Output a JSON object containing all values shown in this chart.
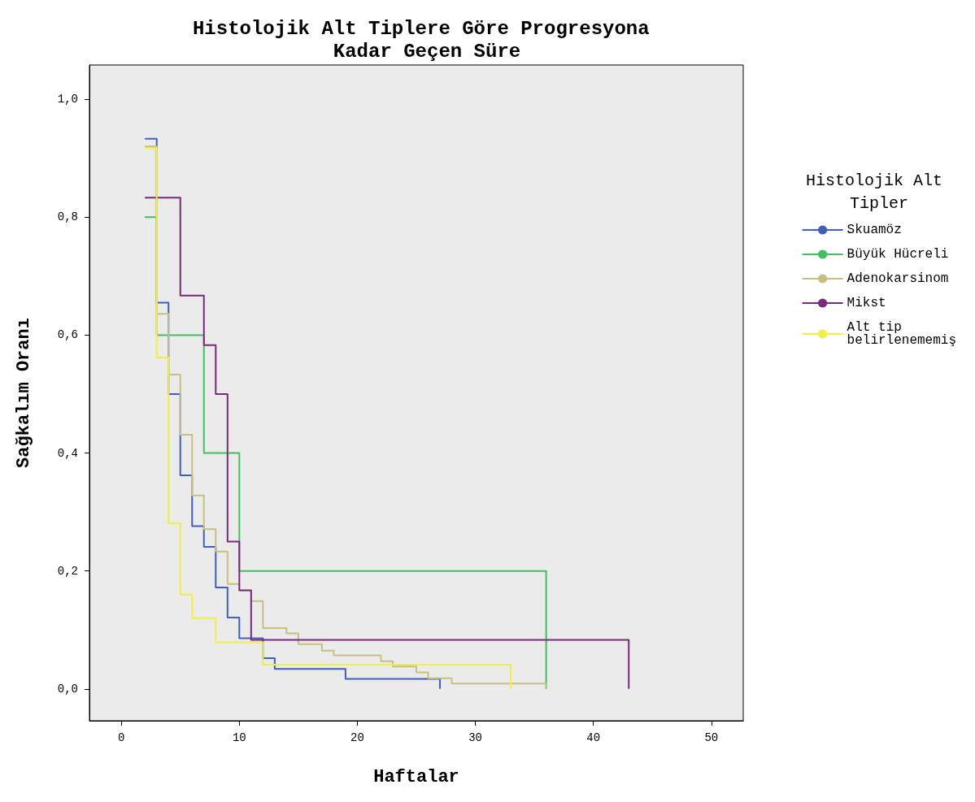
{
  "chart_data": {
    "type": "step",
    "title": "Histolojik Alt Tiplere Göre Progresyona Kadar Geçen Süre",
    "xlabel": "Haftalar",
    "ylabel": "Sağkalım Oranı",
    "legend_title": "Histolojik Alt Tipler",
    "legend": "right",
    "grid": false,
    "marker": "none",
    "line_style": "solid",
    "xlim": [
      -2.7,
      52.7
    ],
    "xticks": [
      0,
      10,
      20,
      30,
      40,
      50
    ],
    "ylim": [
      -0.054,
      1.058
    ],
    "yticks": [
      {
        "value": 0,
        "label": "0,0"
      },
      {
        "value": 0.2,
        "label": "0,2"
      },
      {
        "value": 0.4,
        "label": "0,4"
      },
      {
        "value": 0.6,
        "label": "0,6"
      },
      {
        "value": 0.8,
        "label": "0,8"
      },
      {
        "value": 1,
        "label": "1,0"
      }
    ],
    "series": [
      {
        "name": "Skuamöz",
        "color": "#4060c0",
        "x": [
          2,
          3,
          4,
          5,
          6,
          7,
          8,
          9,
          10,
          12,
          13,
          19,
          27
        ],
        "values": [
          0.933,
          0.655,
          0.5,
          0.362,
          0.276,
          0.241,
          0.172,
          0.121,
          0.086,
          0.052,
          0.034,
          0.017,
          0
        ]
      },
      {
        "name": "Büyük Hücreli",
        "color": "#40c060",
        "x": [
          2,
          3,
          7,
          10,
          36
        ],
        "values": [
          0.8,
          0.6,
          0.4,
          0.2,
          0
        ]
      },
      {
        "name": "Adenokarsinom",
        "color": "#c8c080",
        "x": [
          2,
          3,
          4,
          5,
          6,
          7,
          8,
          9,
          10,
          11,
          12,
          14,
          15,
          17,
          18,
          22,
          23,
          25,
          26,
          28,
          36
        ],
        "values": [
          0.92,
          0.636,
          0.533,
          0.431,
          0.328,
          0.271,
          0.233,
          0.178,
          0.167,
          0.149,
          0.103,
          0.094,
          0.076,
          0.065,
          0.057,
          0.047,
          0.038,
          0.028,
          0.018,
          0.009,
          0
        ]
      },
      {
        "name": "Mikst",
        "color": "#7a2a7a",
        "x": [
          2,
          5,
          7,
          8,
          9,
          10,
          11,
          43
        ],
        "values": [
          0.833,
          0.667,
          0.583,
          0.5,
          0.25,
          0.167,
          0.083,
          0
        ]
      },
      {
        "name": "Alt tip belirlenememiş",
        "color": "#f0f040",
        "x": [
          2,
          3,
          4,
          5,
          6,
          8,
          12,
          33
        ],
        "values": [
          0.917,
          0.562,
          0.281,
          0.16,
          0.12,
          0.079,
          0.041,
          0
        ]
      }
    ]
  }
}
